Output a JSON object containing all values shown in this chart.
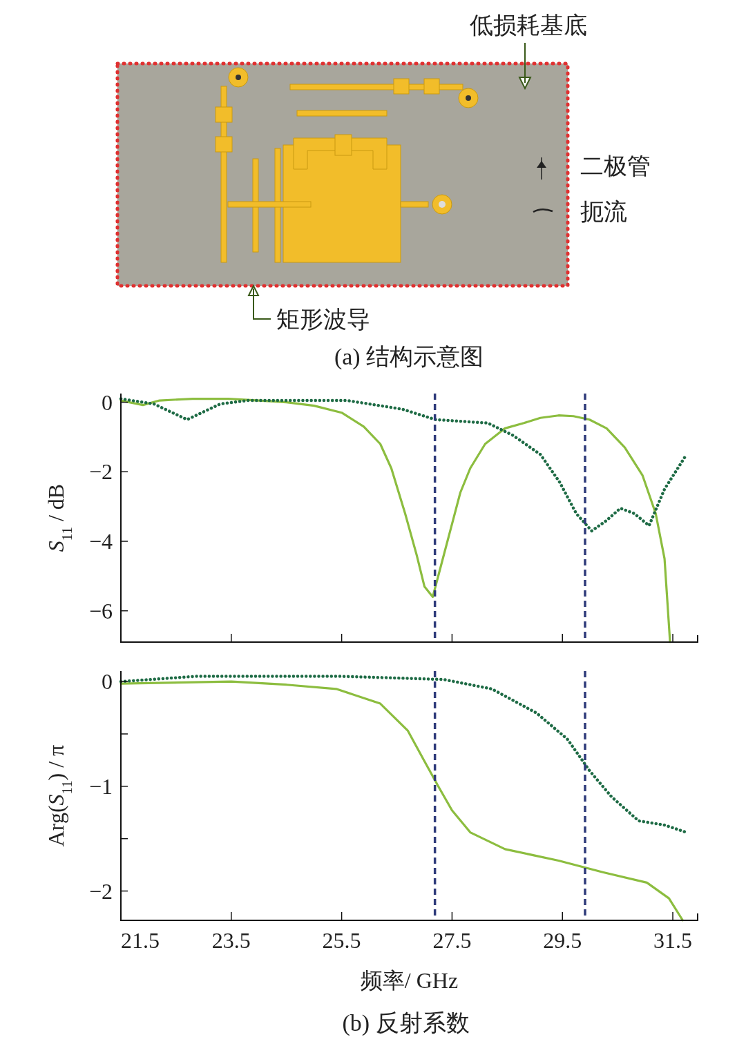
{
  "chart_data": [
    {
      "type": "other",
      "annotations": [
        "低损耗基底",
        "二极管",
        "扼流",
        "矩形波导",
        "(a) 结构示意图"
      ]
    },
    {
      "type": "line",
      "ylabel": "*S*$_{11}$ / dB",
      "xlim": [
        21.5,
        31.95
      ],
      "ylim": [
        -6.9,
        0.25
      ],
      "xticks": [
        21.5,
        23.5,
        25.5,
        27.5,
        29.5,
        31.5
      ],
      "yticks": [
        0,
        -2,
        -4,
        -6
      ],
      "tick_labels": "y",
      "series": [
        {
          "color": "#8cbd3f",
          "line_style": "solid",
          "x": [
            21.5,
            21.9,
            22.2,
            22.8,
            23.45,
            24.0,
            24.5,
            25.0,
            25.5,
            25.9,
            26.2,
            26.4,
            26.65,
            26.86,
            27.0,
            27.15,
            27.3,
            27.5,
            27.65,
            27.83,
            28.1,
            28.46,
            28.8,
            29.1,
            29.43,
            29.7,
            29.99,
            30.3,
            30.63,
            30.95,
            31.19,
            31.35,
            31.45
          ],
          "values": [
            0.05,
            -0.08,
            0.05,
            0.1,
            0.1,
            0.05,
            0.0,
            -0.1,
            -0.3,
            -0.7,
            -1.2,
            -1.9,
            -3.2,
            -4.4,
            -5.3,
            -5.6,
            -4.7,
            -3.5,
            -2.6,
            -1.9,
            -1.2,
            -0.75,
            -0.6,
            -0.45,
            -0.38,
            -0.4,
            -0.5,
            -0.75,
            -1.3,
            -2.1,
            -3.2,
            -4.5,
            -6.9
          ]
        },
        {
          "color": "#1e6b45",
          "line_style": "dotted",
          "x": [
            21.5,
            22.1,
            22.7,
            23.3,
            23.8,
            25.6,
            26.6,
            27.2,
            28.15,
            28.6,
            29.1,
            29.45,
            29.75,
            30.03,
            30.3,
            30.55,
            30.8,
            31.07,
            31.35,
            31.75
          ],
          "values": [
            0.1,
            -0.05,
            -0.5,
            -0.05,
            0.05,
            0.05,
            -0.2,
            -0.5,
            -0.6,
            -0.95,
            -1.5,
            -2.3,
            -3.2,
            -3.7,
            -3.4,
            -3.05,
            -3.2,
            -3.55,
            -2.5,
            -1.5
          ]
        }
      ],
      "ref_lines": [
        {
          "axis": "x",
          "value": 27.19,
          "color": "#2e3a7a",
          "line_style": "dashed"
        },
        {
          "axis": "x",
          "value": 29.91,
          "color": "#2e3a7a",
          "line_style": "dashed"
        }
      ]
    },
    {
      "type": "line",
      "ylabel": "Arg(*S*$_{11}$) / π",
      "xlabel": "频率/ GHz",
      "xlim": [
        21.5,
        31.95
      ],
      "ylim": [
        -2.28,
        0.1
      ],
      "xticks": [
        21.5,
        23.5,
        25.5,
        27.5,
        29.5,
        31.5
      ],
      "yticks": [
        0,
        {
          "value": -0.5,
          "label": null
        },
        -1,
        {
          "value": -1.5,
          "label": null
        },
        -2
      ],
      "series": [
        {
          "color": "#8cbd3f",
          "line_style": "solid",
          "x": [
            21.5,
            23.5,
            24.5,
            25.4,
            26.2,
            26.7,
            27.0,
            27.25,
            27.5,
            27.83,
            28.46,
            29.43,
            30.23,
            31.03,
            31.43,
            31.68
          ],
          "values": [
            -0.02,
            0.0,
            -0.03,
            -0.07,
            -0.21,
            -0.47,
            -0.76,
            -1.0,
            -1.23,
            -1.44,
            -1.6,
            -1.71,
            -1.82,
            -1.92,
            -2.07,
            -2.28
          ]
        },
        {
          "color": "#1e6b45",
          "line_style": "dotted",
          "x": [
            21.5,
            22.86,
            25.5,
            27.35,
            28.22,
            29.03,
            29.59,
            29.99,
            30.39,
            30.88,
            31.35,
            31.75
          ],
          "values": [
            0.0,
            0.05,
            0.05,
            0.02,
            -0.07,
            -0.3,
            -0.55,
            -0.85,
            -1.1,
            -1.33,
            -1.37,
            -1.44
          ]
        }
      ],
      "ref_lines": [
        {
          "axis": "x",
          "value": 27.19,
          "color": "#2e3a7a",
          "line_style": "dashed"
        },
        {
          "axis": "x",
          "value": 29.91,
          "color": "#2e3a7a",
          "line_style": "dashed"
        }
      ],
      "annotations": [
        "(b) 反射系数"
      ]
    }
  ]
}
